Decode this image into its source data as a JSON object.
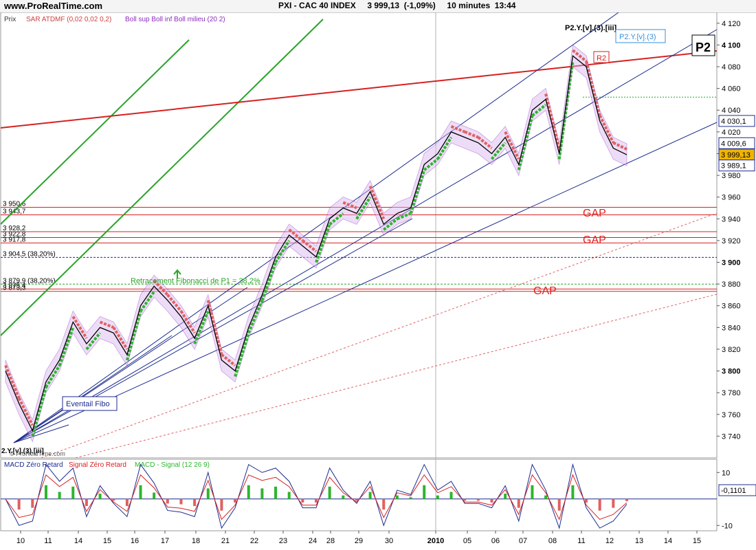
{
  "header": {
    "site": "www.ProRealTime.com",
    "title": "PXI - CAC 40 INDEX     3 999,13  (-1,09%)     10 minutes  13:44"
  },
  "legend": {
    "prix": "Prix",
    "sar": "SAR ATDMF (0,02 0,02 0,2)",
    "boll": "Boll sup Boll inf Boll milieu (20 2)",
    "macd": "MACD Zéro Retard",
    "signal": "Signal Zéro Retard",
    "hist": "MACD - Signal (12 26 9)"
  },
  "annotations": {
    "p2_top": "P2.Y.[v].(3).[iii]",
    "p2_box": "P2.Y.[v].(3)",
    "p2_big": "P2",
    "r2": "R2",
    "gap": "GAP",
    "fibo": "Retracement Fibonacci de P1 = 38,2%",
    "eventail": "Eventail Fibo",
    "wave_low": "2.Y.[v].(3).[iii]",
    "watermark": "© ProRealTime.com"
  },
  "levels": [
    {
      "label": "3 950,6",
      "value": 3950.6
    },
    {
      "label": "3 943,7",
      "value": 3943.7
    },
    {
      "label": "3 928,2",
      "value": 3928.2
    },
    {
      "label": "3 922,8",
      "value": 3922.8
    },
    {
      "label": "3 917,8",
      "value": 3917.8
    },
    {
      "label": "3 904,5 (38,20%)",
      "value": 3904.5
    },
    {
      "label": "3 879,9 (38,20%)",
      "value": 3879.9
    },
    {
      "label": "3 875,4",
      "value": 3875.4
    },
    {
      "label": "3 873,3",
      "value": 3873.3
    }
  ],
  "price_tags": [
    {
      "label": "4 030,1",
      "value": 4030.1,
      "bg": "#ffffff"
    },
    {
      "label": "4 009,6",
      "value": 4009.6,
      "bg": "#ffffff"
    },
    {
      "label": "3 999,13",
      "value": 3999.13,
      "bg": "#f0b400"
    },
    {
      "label": "3 989,1",
      "value": 3989.1,
      "bg": "#ffffff"
    }
  ],
  "macd_tag": "-0,1101",
  "colors": {
    "price": "#000000",
    "sar_up": "#2db52d",
    "sar_down": "#e06060",
    "boll": "#8a2bbd",
    "channel": "#1c2b8f",
    "red_line": "#d62020",
    "green_line": "#29a329",
    "gap": "#e02020"
  },
  "chart_data": {
    "type": "line",
    "x_ticks": [
      "10",
      "11",
      "14",
      "15",
      "16",
      "17",
      "18",
      "21",
      "22",
      "23",
      "24",
      "28",
      "29",
      "30",
      "2010",
      "05",
      "06",
      "07",
      "08",
      "11",
      "12",
      "13",
      "14",
      "15"
    ],
    "ylim": [
      3720,
      4130
    ],
    "y_ticks": [
      3740,
      3760,
      3780,
      3800,
      3820,
      3840,
      3860,
      3880,
      3900,
      3920,
      3940,
      3960,
      3980,
      4000,
      4020,
      4040,
      4060,
      4080,
      4100,
      4120
    ],
    "y_labels": [
      "3 740",
      "3 760",
      "3 780",
      "3 800",
      "3 820",
      "3 840",
      "3 860",
      "3 880",
      "3 900",
      "3 920",
      "3 940",
      "3 960",
      "3 980",
      "4 000",
      "4 020",
      "4 040",
      "4 060",
      "4 080",
      "4 100",
      "4 120"
    ],
    "y_bold": [
      3800,
      3900,
      4000,
      4100
    ],
    "series": [
      {
        "values": [
          3800,
          3770,
          3745,
          3790,
          3810,
          3845,
          3825,
          3840,
          3835,
          3815,
          3860,
          3878,
          3865,
          3850,
          3830,
          3860,
          3810,
          3800,
          3840,
          3870,
          3905,
          3925,
          3915,
          3905,
          3940,
          3950,
          3945,
          3965,
          3935,
          3945,
          3950,
          3990,
          4000,
          4020,
          4015,
          4010,
          4000,
          4015,
          3990,
          4040,
          4050,
          4000,
          4090,
          4080,
          4030,
          4005,
          3999
        ]
      }
    ],
    "macd": {
      "ylim": [
        -12,
        15
      ],
      "y_ticks": [
        10,
        -10
      ],
      "y_labels": [
        "10",
        "-10"
      ]
    }
  }
}
